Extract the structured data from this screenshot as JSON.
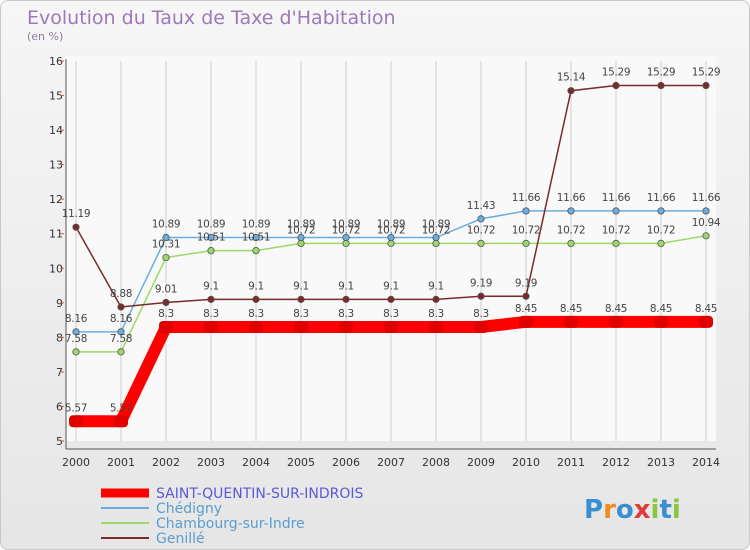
{
  "chart_data": {
    "type": "line",
    "title": "Evolution du Taux de Taxe d'Habitation",
    "ylabel": "(en %)",
    "x": [
      2000,
      2001,
      2002,
      2003,
      2004,
      2005,
      2006,
      2007,
      2008,
      2009,
      2010,
      2011,
      2012,
      2013,
      2014
    ],
    "ylim": [
      5,
      16
    ],
    "yticks": [
      5,
      6,
      7,
      8,
      9,
      10,
      11,
      12,
      13,
      14,
      15,
      16
    ],
    "grid": "vertical",
    "legend": "bottom-left",
    "series": [
      {
        "name": "SAINT-QUENTIN-SUR-INDROIS",
        "color": "#ff0000",
        "legend_color": "#5a5ad8",
        "values": [
          5.57,
          5.57,
          8.3,
          8.3,
          8.3,
          8.3,
          8.3,
          8.3,
          8.3,
          8.3,
          8.45,
          8.45,
          8.45,
          8.45,
          8.45
        ],
        "labels": [
          "5.57",
          "5.57",
          "8.3",
          "8.3",
          "8.3",
          "8.3",
          "8.3",
          "8.3",
          "8.3",
          "8.3",
          "8.45",
          "8.45",
          "8.45",
          "8.45",
          "8.45"
        ]
      },
      {
        "name": "Chédigny",
        "color": "#6aaee0",
        "legend_color": "#5a9dd0",
        "values": [
          8.16,
          8.16,
          10.89,
          10.89,
          10.89,
          10.89,
          10.89,
          10.89,
          10.89,
          11.43,
          11.66,
          11.66,
          11.66,
          11.66,
          11.66
        ],
        "labels": [
          "8.16",
          "8.16",
          "10.89",
          "10.89",
          "10.89",
          "10.89",
          "10.89",
          "10.89",
          "10.89",
          "11.43",
          "11.66",
          "11.66",
          "11.66",
          "11.66",
          "11.66"
        ]
      },
      {
        "name": "Chambourg-sur-Indre",
        "color": "#9cd86a",
        "legend_color": "#5a9dd0",
        "values": [
          7.58,
          7.58,
          10.31,
          10.51,
          10.51,
          10.72,
          10.72,
          10.72,
          10.72,
          10.72,
          10.72,
          10.72,
          10.72,
          10.72,
          10.94
        ],
        "labels": [
          "7.58",
          "7.58",
          "10.31",
          "10.51",
          "10.51",
          "10.72",
          "10.72",
          "10.72",
          "10.72",
          "10.72",
          "10.72",
          "10.72",
          "10.72",
          "10.72",
          "10.94"
        ]
      },
      {
        "name": "Genillé",
        "color": "#7a2a2a",
        "legend_color": "#5a9dd0",
        "values": [
          11.19,
          8.88,
          9.01,
          9.1,
          9.1,
          9.1,
          9.1,
          9.1,
          9.1,
          9.19,
          9.19,
          15.14,
          15.29,
          15.29,
          15.29
        ],
        "labels": [
          "11.19",
          "8.88",
          "9.01",
          "9.1",
          "9.1",
          "9.1",
          "9.1",
          "9.1",
          "9.1",
          "9.19",
          "9.19",
          "15.14",
          "15.29",
          "15.29",
          "15.29"
        ]
      }
    ]
  },
  "brand": {
    "logo_text": "Proxiti",
    "letters": [
      "P",
      "r",
      "o",
      "x",
      "i",
      "t",
      "i"
    ],
    "letter_colors": [
      "#3a8fd0",
      "#f28a1e",
      "#3a8fd0",
      "#e03a3a",
      "#8cc63f",
      "#3a8fd0",
      "#8cc63f"
    ]
  }
}
